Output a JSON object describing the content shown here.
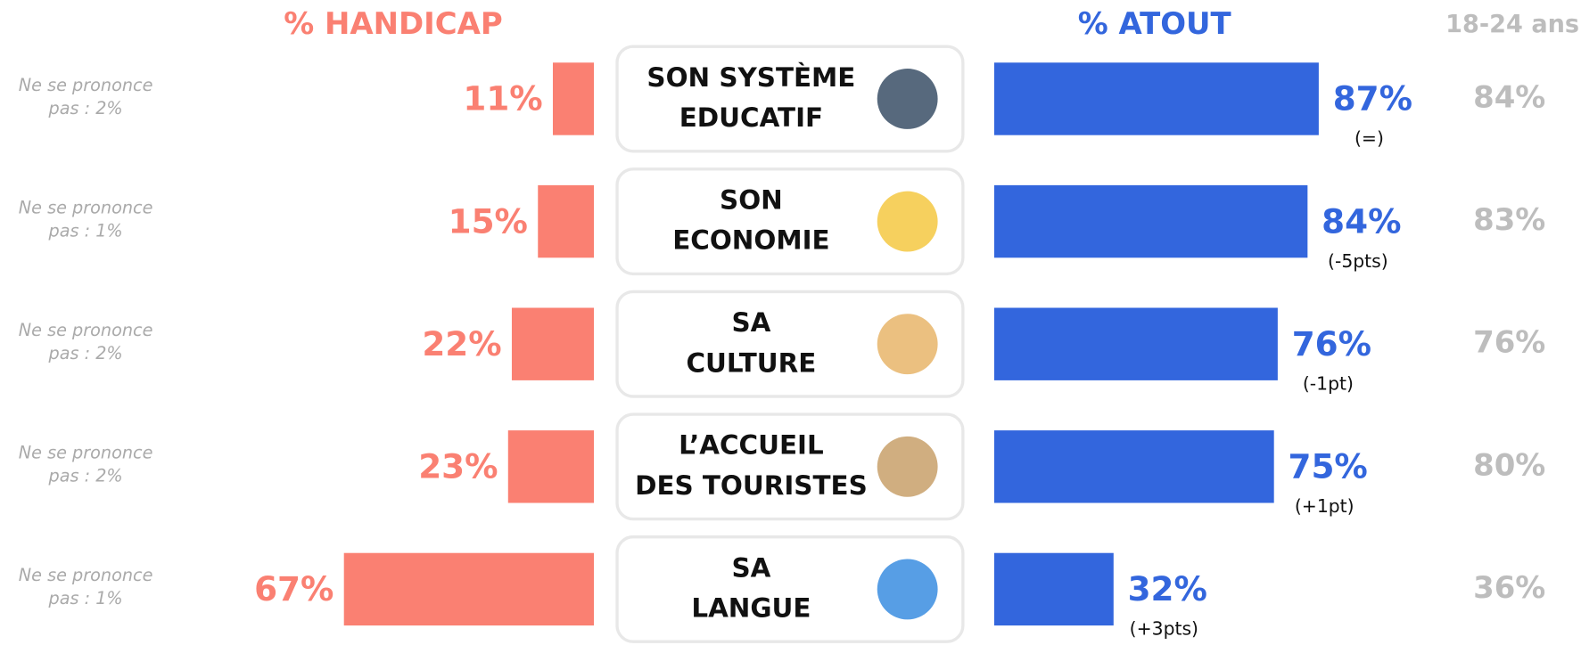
{
  "chart_data": {
    "type": "butterfly",
    "categories": [
      [
        "SON SYSTÈME",
        "EDUCATIF"
      ],
      [
        "SON",
        "ECONOMIE"
      ],
      [
        "SA",
        "CULTURE"
      ],
      [
        "L’ACCUEIL",
        "DES TOURISTES"
      ],
      [
        "SA",
        "LANGUE"
      ]
    ],
    "series": [
      {
        "name": "% HANDICAP",
        "color": "#fa8072",
        "values": [
          11,
          15,
          22,
          23,
          67
        ],
        "value_labels": [
          "11%",
          "15%",
          "22%",
          "23%",
          "67%"
        ]
      },
      {
        "name": "% ATOUT",
        "color": "#3366dd",
        "values": [
          87,
          84,
          76,
          75,
          32
        ],
        "value_labels": [
          "87%",
          "84%",
          "76%",
          "75%",
          "32%"
        ],
        "changes": [
          "(=)",
          "(-5pts)",
          "(-1pt)",
          "(+1pt)",
          "(+3pts)"
        ]
      },
      {
        "name": "18-24 ans",
        "color": "#bdbdbd",
        "values": [
          84,
          83,
          76,
          80,
          36
        ],
        "value_labels": [
          "84%",
          "83%",
          "76%",
          "80%",
          "36%"
        ]
      }
    ],
    "no_response": [
      [
        "Ne se prononce",
        "pas : 2%"
      ],
      [
        "Ne se prononce",
        "pas : 1%"
      ],
      [
        "Ne se prononce",
        "pas : 2%"
      ],
      [
        "Ne se prononce",
        "pas : 2%"
      ],
      [
        "Ne se prononce",
        "pas : 1%"
      ]
    ]
  }
}
